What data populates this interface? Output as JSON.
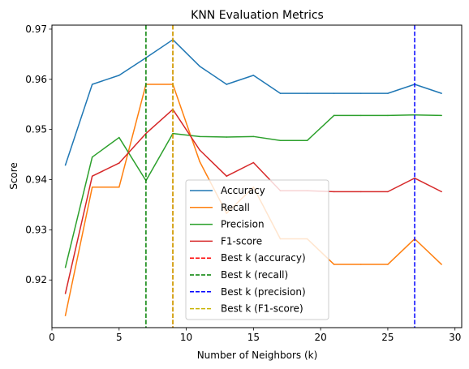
{
  "chart_data": {
    "type": "line",
    "title": "KNN Evaluation Metrics",
    "xlabel": "Number of Neighbors (k)",
    "ylabel": "Score",
    "xlim": [
      0,
      30.5
    ],
    "ylim": [
      0.9105,
      0.9708
    ],
    "xticks": [
      0,
      5,
      10,
      15,
      20,
      25,
      30
    ],
    "yticks": [
      0.92,
      0.93,
      0.94,
      0.95,
      0.96,
      0.97
    ],
    "x": [
      1,
      3,
      5,
      7,
      9,
      11,
      13,
      15,
      17,
      19,
      21,
      23,
      25,
      27,
      29
    ],
    "grid": false,
    "legend_position": "lower-center",
    "series": [
      {
        "name": "Accuracy",
        "color": "#1f77b4",
        "values": [
          0.9429,
          0.959,
          0.9608,
          0.9643,
          0.9679,
          0.9626,
          0.959,
          0.9608,
          0.9572,
          0.9572,
          0.9572,
          0.9572,
          0.9572,
          0.959,
          0.9572
        ]
      },
      {
        "name": "Recall",
        "color": "#ff7f0e",
        "values": [
          0.9129,
          0.9385,
          0.9385,
          0.959,
          0.959,
          0.9436,
          0.9333,
          0.9385,
          0.9282,
          0.9282,
          0.9231,
          0.9231,
          0.9231,
          0.9282,
          0.9231
        ]
      },
      {
        "name": "Precision",
        "color": "#2ca02c",
        "values": [
          0.9225,
          0.9445,
          0.9484,
          0.9398,
          0.9492,
          0.9486,
          0.9485,
          0.9486,
          0.9478,
          0.9478,
          0.9528,
          0.9528,
          0.9528,
          0.9529,
          0.9528
        ]
      },
      {
        "name": "F1-score",
        "color": "#d62728",
        "values": [
          0.9173,
          0.9407,
          0.9433,
          0.9492,
          0.954,
          0.9459,
          0.9407,
          0.9434,
          0.9378,
          0.9378,
          0.9376,
          0.9376,
          0.9376,
          0.9403,
          0.9376
        ]
      }
    ],
    "vlines": [
      {
        "name": "Best k (accuracy)",
        "x": 9,
        "color": "#ff0000",
        "style": "dashed"
      },
      {
        "name": "Best k (recall)",
        "x": 7,
        "color": "#008000",
        "style": "dashed"
      },
      {
        "name": "Best k (precision)",
        "x": 27,
        "color": "#0000ff",
        "style": "dashed"
      },
      {
        "name": "Best k (F1-score)",
        "x": 9,
        "color": "#c8b400",
        "style": "dashed"
      }
    ]
  }
}
